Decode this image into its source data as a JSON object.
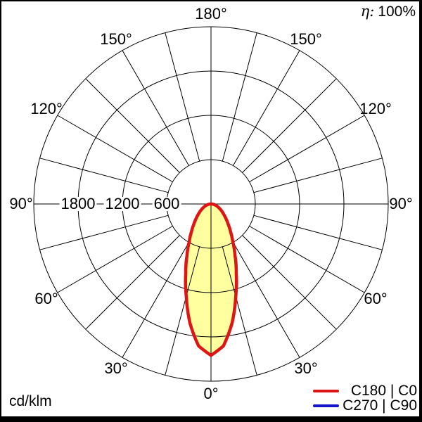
{
  "window": {
    "background": "#ffffff",
    "frame_color": "#000000"
  },
  "header": {
    "eta_symbol": "η:",
    "eta_value": "100%"
  },
  "footer": {
    "unit_label": "cd/klm"
  },
  "legend": {
    "entries": [
      {
        "label": "C180 | C0",
        "color": "#dd1515"
      },
      {
        "label": "C270 | C90",
        "color": "#1414cc"
      }
    ]
  },
  "chart_data": {
    "type": "polar",
    "subtype": "luminous-intensity-distribution",
    "unit": "cd/klm",
    "efficiency_text": "η: 100%",
    "rings": [
      600,
      1200,
      1800,
      2400
    ],
    "ring_axis_labels": [
      "1800",
      "1200",
      "600"
    ],
    "spoke_step_deg": 15,
    "angle_label_step_deg": 30,
    "angle_labels": [
      {
        "text": "0°",
        "angle": 0,
        "side": "center"
      },
      {
        "text": "30°",
        "angle": 30,
        "side": "left"
      },
      {
        "text": "30°",
        "angle": 30,
        "side": "right"
      },
      {
        "text": "60°",
        "angle": 60,
        "side": "left"
      },
      {
        "text": "60°",
        "angle": 60,
        "side": "right"
      },
      {
        "text": "90°",
        "angle": 90,
        "side": "left"
      },
      {
        "text": "90°",
        "angle": 90,
        "side": "right"
      },
      {
        "text": "120°",
        "angle": 120,
        "side": "left"
      },
      {
        "text": "120°",
        "angle": 120,
        "side": "right"
      },
      {
        "text": "150°",
        "angle": 150,
        "side": "left"
      },
      {
        "text": "150°",
        "angle": 150,
        "side": "right"
      },
      {
        "text": "180°",
        "angle": 180,
        "side": "center"
      }
    ],
    "series": [
      {
        "name": "C180 | C0",
        "color": "#dd1515",
        "fill": "#ffffa0",
        "gamma_deg": [
          0,
          5,
          10,
          15,
          20,
          25,
          30,
          35,
          40,
          45,
          50,
          55,
          60,
          65,
          70,
          75,
          80,
          85,
          90
        ],
        "cd_per_klm": [
          2050,
          1930,
          1640,
          1295,
          1000,
          770,
          590,
          463,
          365,
          290,
          231,
          185,
          146,
          114,
          87,
          63,
          41,
          20,
          0
        ]
      },
      {
        "name": "C270 | C90",
        "color": "#1414cc",
        "gamma_deg": [
          0,
          5,
          10,
          15,
          20,
          25,
          30,
          35,
          40,
          45,
          50,
          55,
          60,
          65,
          70,
          75,
          80,
          85,
          90
        ],
        "cd_per_klm": [
          2050,
          1930,
          1640,
          1295,
          1000,
          770,
          590,
          463,
          365,
          290,
          231,
          185,
          146,
          114,
          87,
          63,
          41,
          20,
          0
        ]
      }
    ]
  }
}
